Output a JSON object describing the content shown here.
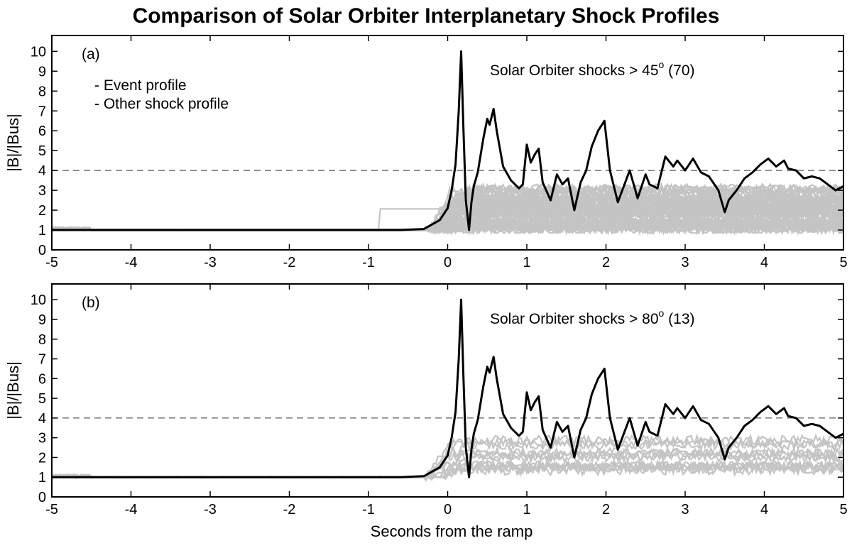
{
  "figure": {
    "title": "Comparison of Solar Orbiter Interplanetary Shock Profiles",
    "xlabel": "Seconds from the ramp"
  },
  "chart_data": [
    {
      "type": "line",
      "panel_label": "(a)",
      "annotation": {
        "prefix": "Solar Orbiter shocks > 45",
        "superscript": "o",
        "suffix": " (70)"
      },
      "ylabel": "|B|/|Bus|",
      "xlim": [
        -5,
        5
      ],
      "ylim": [
        0,
        10.8
      ],
      "x_ticks": [
        -5,
        -4,
        -3,
        -2,
        -1,
        0,
        1,
        2,
        3,
        4,
        5
      ],
      "y_ticks": [
        0,
        1,
        2,
        3,
        4,
        5,
        6,
        7,
        8,
        9,
        10
      ],
      "reference_line": {
        "y": 4,
        "style": "dashed"
      },
      "legend": {
        "placement": "upper-left",
        "entries": [
          {
            "label": "- Event profile",
            "color": "#000000"
          },
          {
            "label": "- Other shock profile",
            "color": "#a9a9a9"
          }
        ]
      },
      "other_profiles": {
        "count": 70,
        "color": "#c4c4c4",
        "pre_shock_level": 1.0,
        "post_shock_range": [
          1.0,
          3.2
        ]
      },
      "series": [
        {
          "name": "Event profile",
          "color": "#000000",
          "x": [
            -5,
            -0.6,
            -0.3,
            -0.1,
            0.0,
            0.05,
            0.1,
            0.14,
            0.17,
            0.2,
            0.23,
            0.27,
            0.3,
            0.33,
            0.38,
            0.45,
            0.5,
            0.53,
            0.58,
            0.62,
            0.7,
            0.8,
            0.9,
            0.95,
            1.0,
            1.05,
            1.1,
            1.15,
            1.2,
            1.3,
            1.38,
            1.45,
            1.52,
            1.6,
            1.68,
            1.75,
            1.82,
            1.9,
            1.98,
            2.05,
            2.15,
            2.3,
            2.4,
            2.5,
            2.55,
            2.65,
            2.75,
            2.85,
            2.9,
            3.0,
            3.1,
            3.2,
            3.3,
            3.42,
            3.5,
            3.55,
            3.65,
            3.75,
            3.85,
            3.95,
            4.05,
            4.15,
            4.25,
            4.3,
            4.4,
            4.5,
            4.6,
            4.7,
            4.8,
            4.9,
            5.0
          ],
          "y": [
            1.0,
            1.0,
            1.05,
            1.5,
            2.1,
            3.0,
            4.3,
            7.0,
            10.0,
            6.0,
            2.5,
            1.0,
            2.4,
            3.2,
            3.9,
            5.6,
            6.6,
            6.3,
            7.1,
            6.0,
            4.2,
            3.5,
            3.1,
            3.3,
            5.3,
            4.4,
            4.8,
            5.1,
            3.4,
            2.5,
            3.8,
            3.3,
            3.6,
            2.0,
            3.4,
            4.0,
            5.2,
            6.0,
            6.5,
            4.0,
            2.4,
            4.0,
            2.6,
            3.8,
            3.3,
            3.1,
            4.7,
            4.2,
            4.5,
            4.0,
            4.6,
            3.9,
            3.7,
            3.0,
            1.9,
            2.5,
            3.0,
            3.6,
            3.9,
            4.3,
            4.6,
            4.2,
            4.5,
            4.1,
            4.0,
            3.6,
            3.7,
            3.6,
            3.3,
            3.0,
            3.2
          ]
        }
      ]
    },
    {
      "type": "line",
      "panel_label": "(b)",
      "annotation": {
        "prefix": "Solar Orbiter shocks > 80",
        "superscript": "o",
        "suffix": " (13)"
      },
      "ylabel": "|B|/|Bus|",
      "xlim": [
        -5,
        5
      ],
      "ylim": [
        0,
        10.8
      ],
      "x_ticks": [
        -5,
        -4,
        -3,
        -2,
        -1,
        0,
        1,
        2,
        3,
        4,
        5
      ],
      "y_ticks": [
        0,
        1,
        2,
        3,
        4,
        5,
        6,
        7,
        8,
        9,
        10
      ],
      "reference_line": {
        "y": 4,
        "style": "dashed"
      },
      "other_profiles": {
        "count": 13,
        "color": "#c4c4c4",
        "pre_shock_level": 1.0,
        "post_shock_range": [
          1.3,
          3.1
        ]
      },
      "series": [
        {
          "name": "Event profile",
          "color": "#000000",
          "x": [
            -5,
            -0.6,
            -0.3,
            -0.1,
            0.0,
            0.05,
            0.1,
            0.14,
            0.17,
            0.2,
            0.23,
            0.27,
            0.3,
            0.33,
            0.38,
            0.45,
            0.5,
            0.53,
            0.58,
            0.62,
            0.7,
            0.8,
            0.9,
            0.95,
            1.0,
            1.05,
            1.1,
            1.15,
            1.2,
            1.3,
            1.38,
            1.45,
            1.52,
            1.6,
            1.68,
            1.75,
            1.82,
            1.9,
            1.98,
            2.05,
            2.15,
            2.3,
            2.4,
            2.5,
            2.55,
            2.65,
            2.75,
            2.85,
            2.9,
            3.0,
            3.1,
            3.2,
            3.3,
            3.42,
            3.5,
            3.55,
            3.65,
            3.75,
            3.85,
            3.95,
            4.05,
            4.15,
            4.25,
            4.3,
            4.4,
            4.5,
            4.6,
            4.7,
            4.8,
            4.9,
            5.0
          ],
          "y": [
            1.0,
            1.0,
            1.05,
            1.5,
            2.1,
            3.0,
            4.3,
            7.0,
            10.0,
            6.0,
            2.5,
            1.0,
            2.4,
            3.2,
            3.9,
            5.6,
            6.6,
            6.3,
            7.1,
            6.0,
            4.2,
            3.5,
            3.1,
            3.3,
            5.3,
            4.4,
            4.8,
            5.1,
            3.4,
            2.5,
            3.8,
            3.3,
            3.6,
            2.0,
            3.4,
            4.0,
            5.2,
            6.0,
            6.5,
            4.0,
            2.4,
            4.0,
            2.6,
            3.8,
            3.3,
            3.1,
            4.7,
            4.2,
            4.5,
            4.0,
            4.6,
            3.9,
            3.7,
            3.0,
            1.9,
            2.5,
            3.0,
            3.6,
            3.9,
            4.3,
            4.6,
            4.2,
            4.5,
            4.1,
            4.0,
            3.6,
            3.7,
            3.6,
            3.3,
            3.0,
            3.2
          ]
        }
      ]
    }
  ]
}
